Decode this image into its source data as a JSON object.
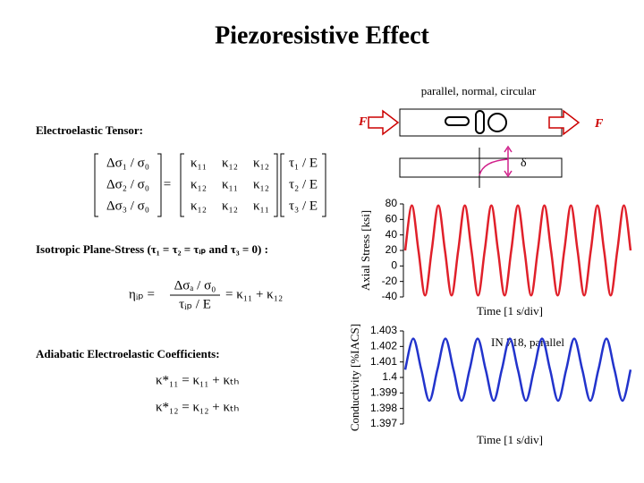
{
  "title": "Piezoresistive Effect",
  "diagram": {
    "caption": "parallel, normal, circular",
    "force_left": "F",
    "force_right": "F",
    "deflection": "δ"
  },
  "tensor": {
    "heading": "Electroelastic Tensor:",
    "lhs": [
      "Δσ₁ / σ₀",
      "Δσ₂ / σ₀",
      "Δσ₃ / σ₀"
    ],
    "equals": "=",
    "matrix": [
      [
        "κ₁₁",
        "κ₁₂",
        "κ₁₂"
      ],
      [
        "κ₁₂",
        "κ₁₁",
        "κ₁₂"
      ],
      [
        "κ₁₂",
        "κ₁₂",
        "κ₁₁"
      ]
    ],
    "rhs": [
      "τ₁ / E",
      "τ₂ / E",
      "τ₃ / E"
    ]
  },
  "isotropic": {
    "heading": "Isotropic Plane-Stress (τ₁ = τ₂ = τᵢₚ  and  τ₃ = 0) :",
    "lhs": "ηᵢₚ =",
    "numerator": "Δσₐ / σ₀",
    "denominator": "τᵢₚ / E",
    "rhs": "= κ₁₁ + κ₁₂"
  },
  "adiabatic": {
    "heading": "Adiabatic Electroelastic Coefficients:",
    "equations": [
      "κ*₁₁ = κ₁₁ + κₜₕ",
      "κ*₁₂ = κ₁₂ + κₜₕ"
    ]
  },
  "chart_data": [
    {
      "type": "line",
      "ylabel": "Axial Stress [ksi]",
      "xlabel": "Time [1 s/div]",
      "color": "#e0202a",
      "ylim": [
        -40,
        80
      ],
      "yticks": [
        80,
        60,
        40,
        20,
        0,
        -20,
        -40
      ],
      "values": [
        20,
        78,
        20,
        -38,
        20,
        78,
        20,
        -38,
        20,
        78,
        20,
        -38,
        20,
        78,
        20,
        -38,
        20,
        78,
        20,
        -38,
        20,
        78,
        20,
        -38,
        20,
        78,
        20,
        -38,
        20,
        78,
        20,
        -38,
        20,
        78,
        20
      ]
    },
    {
      "type": "line",
      "ylabel": "Conductivity [%IACS]",
      "xlabel": "Time [1 s/div]",
      "annotation": "IN 718, parallel",
      "color": "#2233cc",
      "ylim": [
        1.397,
        1.403
      ],
      "yticks": [
        1.403,
        1.402,
        1.401,
        1.4,
        1.399,
        1.398,
        1.397
      ],
      "values": [
        1.4005,
        1.4025,
        1.4005,
        1.3985,
        1.4005,
        1.4025,
        1.4005,
        1.3985,
        1.4005,
        1.4025,
        1.4005,
        1.3985,
        1.4005,
        1.4025,
        1.4005,
        1.3985,
        1.4005,
        1.4025,
        1.4005,
        1.3985,
        1.4005,
        1.4025,
        1.4005,
        1.3985,
        1.4005,
        1.4025,
        1.4005,
        1.3985,
        1.4005
      ]
    }
  ]
}
